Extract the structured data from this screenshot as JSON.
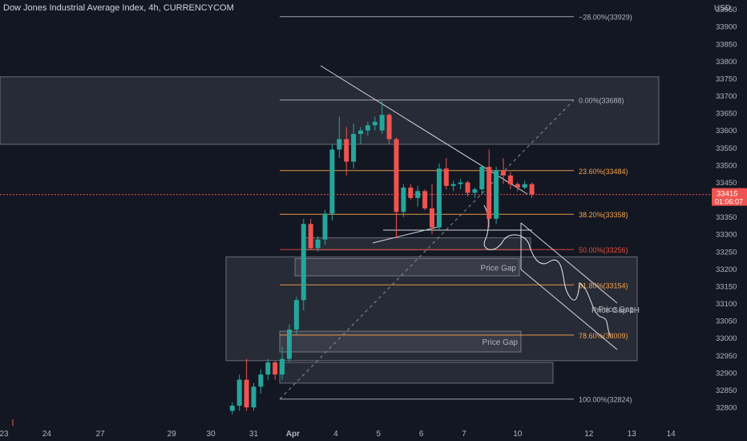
{
  "header": {
    "title": "Dow Jones Industrial Average Index, 4h, CURRENCYCOM",
    "currency": "USD"
  },
  "price_label": {
    "price": "33415",
    "countdown": "01:06:07"
  },
  "colors": {
    "background": "#131722",
    "bull": "#26a69a",
    "bear": "#ef5350",
    "fib_orange": "#f7a34b",
    "fib_red": "#e74c3c",
    "axis_text": "#b2b5be"
  },
  "chart_data": {
    "type": "candlestick",
    "symbol": "Dow Jones Industrial Average Index",
    "timeframe": "4h",
    "ylim": [
      32780,
      34000
    ],
    "yticks": [
      32800,
      32850,
      32900,
      32950,
      33000,
      33050,
      33100,
      33150,
      33200,
      33250,
      33300,
      33350,
      33400,
      33450,
      33500,
      33550,
      33600,
      33650,
      33700,
      33750,
      33800,
      33850,
      33900,
      33950
    ],
    "xticks": [
      {
        "label": "23",
        "x": 0
      },
      {
        "label": "24",
        "x": 6
      },
      {
        "label": "27",
        "x": 13.5
      },
      {
        "label": "29",
        "x": 23.5
      },
      {
        "label": "30",
        "x": 29
      },
      {
        "label": "31",
        "x": 35
      },
      {
        "label": "Apr",
        "x": 40.5
      },
      {
        "label": "4",
        "x": 46.5
      },
      {
        "label": "5",
        "x": 52.5
      },
      {
        "label": "6",
        "x": 58.5
      },
      {
        "label": "7",
        "x": 64.5
      },
      {
        "label": "10",
        "x": 72
      },
      {
        "label": "12",
        "x": 82
      },
      {
        "label": "13",
        "x": 88
      },
      {
        "label": "14",
        "x": 93.5
      }
    ],
    "candles": [
      {
        "x": 32,
        "o": 32790,
        "h": 32815,
        "l": 32780,
        "c": 32805
      },
      {
        "x": 33,
        "o": 32805,
        "h": 32895,
        "l": 32790,
        "c": 32880
      },
      {
        "x": 34,
        "o": 32880,
        "h": 32940,
        "l": 32790,
        "c": 32800
      },
      {
        "x": 35,
        "o": 32800,
        "h": 32870,
        "l": 32790,
        "c": 32860
      },
      {
        "x": 36,
        "o": 32860,
        "h": 32910,
        "l": 32840,
        "c": 32895
      },
      {
        "x": 37,
        "o": 32895,
        "h": 32940,
        "l": 32880,
        "c": 32930
      },
      {
        "x": 38,
        "o": 32930,
        "h": 32935,
        "l": 32880,
        "c": 32895
      },
      {
        "x": 39,
        "o": 32895,
        "h": 32975,
        "l": 32880,
        "c": 32940
      },
      {
        "x": 40,
        "o": 32940,
        "h": 33040,
        "l": 32930,
        "c": 33025
      },
      {
        "x": 41,
        "o": 33025,
        "h": 33120,
        "l": 33010,
        "c": 33110
      },
      {
        "x": 42,
        "o": 33110,
        "h": 33345,
        "l": 33080,
        "c": 33330
      },
      {
        "x": 43,
        "o": 33330,
        "h": 33345,
        "l": 33255,
        "c": 33260
      },
      {
        "x": 44,
        "o": 33260,
        "h": 33295,
        "l": 33250,
        "c": 33285
      },
      {
        "x": 45,
        "o": 33285,
        "h": 33370,
        "l": 33270,
        "c": 33360
      },
      {
        "x": 46,
        "o": 33360,
        "h": 33560,
        "l": 33340,
        "c": 33545
      },
      {
        "x": 47,
        "o": 33545,
        "h": 33640,
        "l": 33520,
        "c": 33575
      },
      {
        "x": 48,
        "o": 33575,
        "h": 33610,
        "l": 33470,
        "c": 33510
      },
      {
        "x": 49,
        "o": 33510,
        "h": 33620,
        "l": 33490,
        "c": 33590
      },
      {
        "x": 50,
        "o": 33590,
        "h": 33610,
        "l": 33560,
        "c": 33600
      },
      {
        "x": 51,
        "o": 33600,
        "h": 33625,
        "l": 33585,
        "c": 33615
      },
      {
        "x": 52,
        "o": 33615,
        "h": 33640,
        "l": 33600,
        "c": 33625
      },
      {
        "x": 53,
        "o": 33600,
        "h": 33685,
        "l": 33590,
        "c": 33645
      },
      {
        "x": 54,
        "o": 33645,
        "h": 33650,
        "l": 33560,
        "c": 33575
      },
      {
        "x": 55,
        "o": 33575,
        "h": 33580,
        "l": 33290,
        "c": 33365
      },
      {
        "x": 56,
        "o": 33365,
        "h": 33445,
        "l": 33350,
        "c": 33435
      },
      {
        "x": 57,
        "o": 33435,
        "h": 33445,
        "l": 33400,
        "c": 33405
      },
      {
        "x": 58,
        "o": 33405,
        "h": 33440,
        "l": 33380,
        "c": 33425
      },
      {
        "x": 59,
        "o": 33425,
        "h": 33430,
        "l": 33370,
        "c": 33375
      },
      {
        "x": 60,
        "o": 33375,
        "h": 33445,
        "l": 33300,
        "c": 33320
      },
      {
        "x": 61,
        "o": 33320,
        "h": 33505,
        "l": 33310,
        "c": 33490
      },
      {
        "x": 62,
        "o": 33490,
        "h": 33520,
        "l": 33430,
        "c": 33440
      },
      {
        "x": 63,
        "o": 33440,
        "h": 33455,
        "l": 33425,
        "c": 33445
      },
      {
        "x": 64,
        "o": 33445,
        "h": 33460,
        "l": 33430,
        "c": 33450
      },
      {
        "x": 65,
        "o": 33450,
        "h": 33455,
        "l": 33410,
        "c": 33420
      },
      {
        "x": 66,
        "o": 33420,
        "h": 33435,
        "l": 33405,
        "c": 33430
      },
      {
        "x": 67,
        "o": 33430,
        "h": 33500,
        "l": 33415,
        "c": 33495
      },
      {
        "x": 68,
        "o": 33495,
        "h": 33545,
        "l": 33320,
        "c": 33345
      },
      {
        "x": 69,
        "o": 33345,
        "h": 33495,
        "l": 33330,
        "c": 33485
      },
      {
        "x": 70,
        "o": 33485,
        "h": 33520,
        "l": 33445,
        "c": 33470
      },
      {
        "x": 71,
        "o": 33470,
        "h": 33480,
        "l": 33430,
        "c": 33445
      },
      {
        "x": 72,
        "o": 33445,
        "h": 33450,
        "l": 33425,
        "c": 33435
      },
      {
        "x": 73,
        "o": 33435,
        "h": 33455,
        "l": 33430,
        "c": 33445
      },
      {
        "x": 74,
        "o": 33445,
        "h": 33450,
        "l": 33405,
        "c": 33415
      }
    ],
    "fib_levels": [
      {
        "label": "−28.00%(33929)",
        "price": 33929,
        "color": "#b2b5be"
      },
      {
        "label": "0.00%(33688)",
        "price": 33688,
        "color": "#b2b5be"
      },
      {
        "label": "23.60%(33484)",
        "price": 33484,
        "color": "#f7a34b"
      },
      {
        "label": "38.20%(33358)",
        "price": 33358,
        "color": "#f7a34b"
      },
      {
        "label": "50.00%(33256)",
        "price": 33256,
        "color": "#e74c3c"
      },
      {
        "label": "61.80%(33154)",
        "price": 33154,
        "color": "#f7a34b"
      },
      {
        "label": "78.60%(33009)",
        "price": 33009,
        "color": "#f7a34b"
      },
      {
        "label": "100.00%(32824)",
        "price": 32824,
        "color": "#b2b5be"
      }
    ],
    "zones": [
      {
        "label": "",
        "top": 33755,
        "bottom": 33560
      },
      {
        "label": "Price Gap",
        "top": 33235,
        "bottom": 32935
      },
      {
        "label": "Price Gap",
        "top": 33230,
        "bottom": 33180
      },
      {
        "label": "",
        "top": 33290,
        "bottom": 33255
      },
      {
        "label": "Price Gap",
        "top": 33020,
        "bottom": 32960
      },
      {
        "label": "",
        "top": 32930,
        "bottom": 32870
      }
    ],
    "annotations": [
      "Price Gap 1H"
    ]
  }
}
